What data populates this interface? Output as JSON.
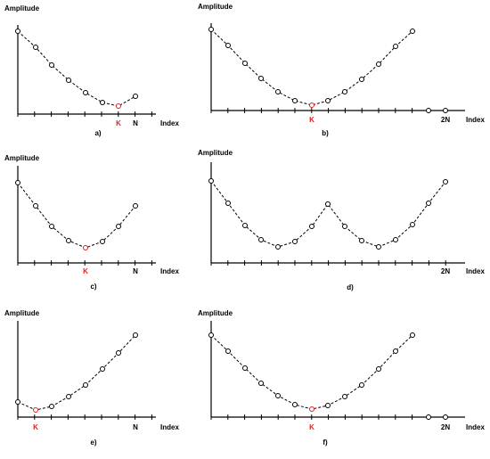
{
  "panels": [
    {
      "caption": "a)",
      "y_label": "Amplitude",
      "x_label": "Index",
      "x_markers": [
        "K",
        "N"
      ]
    },
    {
      "caption": "b)",
      "y_label": "Amplitude",
      "x_label": "Index",
      "x_markers": [
        "K",
        "2N"
      ]
    },
    {
      "caption": "c)",
      "y_label": "Amplitude",
      "x_label": "Index",
      "x_markers": [
        "K",
        "N"
      ]
    },
    {
      "caption": "d)",
      "y_label": "Amplitude",
      "x_label": "Index",
      "x_markers": [
        "2N"
      ]
    },
    {
      "caption": "e)",
      "y_label": "Amplitude",
      "x_label": "Index",
      "x_markers": [
        "K",
        "N"
      ]
    },
    {
      "caption": "f)",
      "y_label": "Amplitude",
      "x_label": "Index",
      "x_markers": [
        "K",
        "2N"
      ]
    }
  ]
}
